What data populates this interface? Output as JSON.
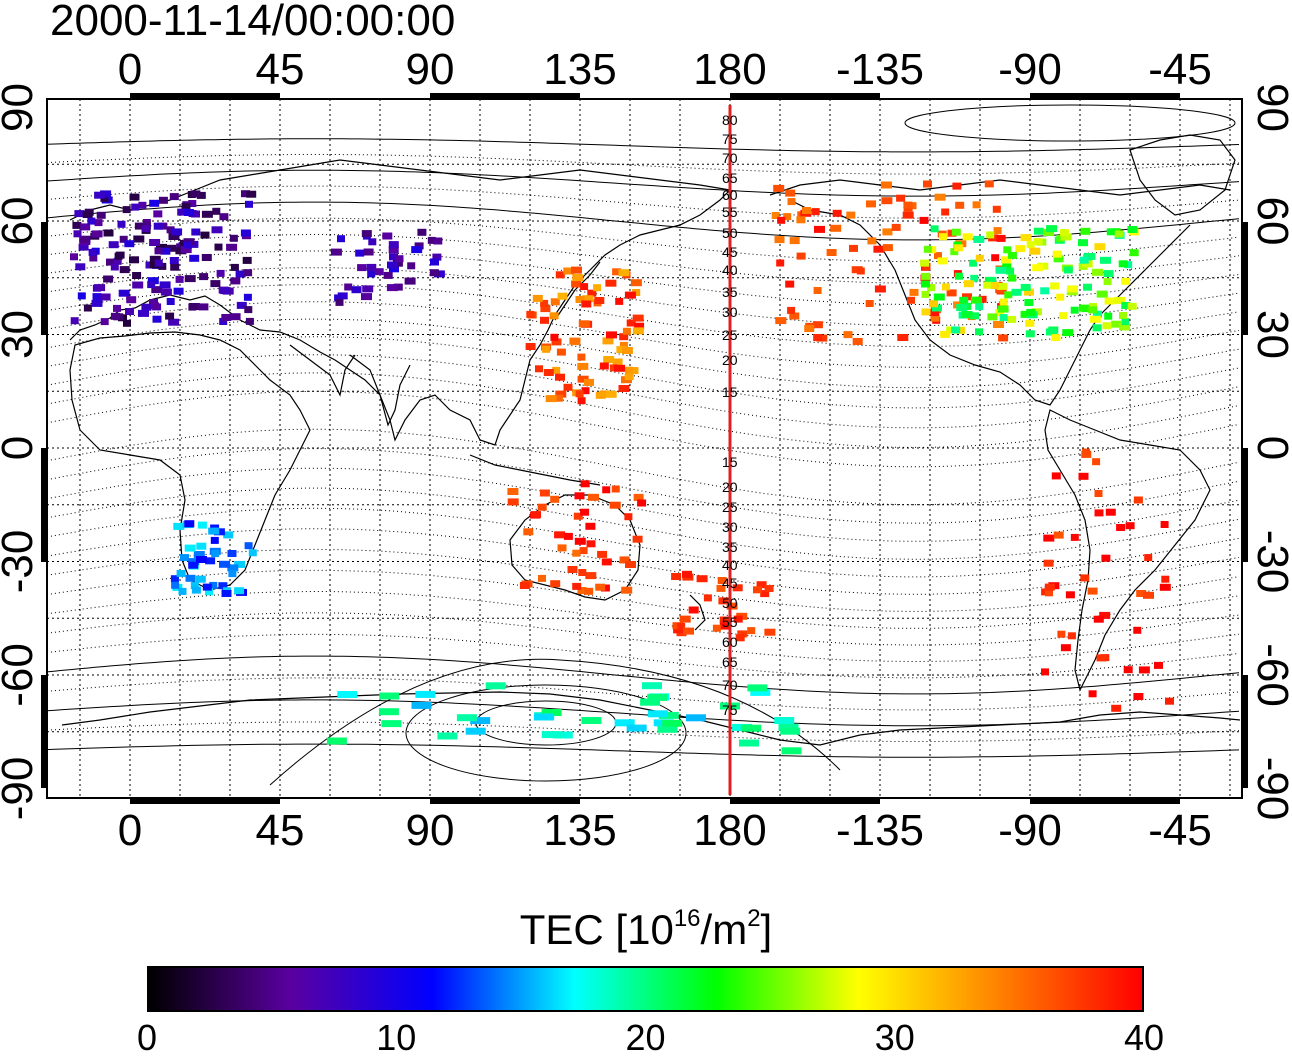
{
  "title": "2000-11-14/00:00:00",
  "map": {
    "top_lon_labels": [
      "0",
      "45",
      "90",
      "135",
      "180",
      "-135",
      "-90",
      "-45"
    ],
    "bottom_lon_labels": [
      "0",
      "45",
      "90",
      "135",
      "180",
      "-135",
      "-90",
      "-45"
    ],
    "left_lat_labels": [
      "90",
      "60",
      "30",
      "0",
      "-30",
      "-60",
      "-90"
    ],
    "right_lat_labels": [
      "90",
      "60",
      "30",
      "0",
      "-30",
      "-60",
      "-90"
    ],
    "magnetic_lat_labels_north": [
      "80",
      "75",
      "70",
      "65",
      "60",
      "55",
      "50",
      "45",
      "40",
      "35",
      "30",
      "25",
      "20",
      "15"
    ],
    "magnetic_lat_labels_south": [
      "15",
      "20",
      "25",
      "30",
      "35",
      "40",
      "45",
      "50",
      "55",
      "60",
      "65",
      "70",
      "75"
    ],
    "meridian_line_color": "#e02020",
    "lon_ticks": [
      0,
      45,
      90,
      135,
      180,
      -135,
      -90,
      -45
    ],
    "lat_ticks": [
      90,
      60,
      30,
      0,
      -30,
      -60,
      -90
    ]
  },
  "colorbar": {
    "title_main": "TEC  [10",
    "title_exp": "16",
    "title_mid": "/m",
    "title_exp2": "2",
    "title_end": "]",
    "min": 0,
    "max": 40,
    "tick_labels": [
      "0",
      "10",
      "20",
      "30",
      "40"
    ],
    "colors": [
      "#000000",
      "#5a00a0",
      "#0000ff",
      "#00ffff",
      "#00ff00",
      "#ffff00",
      "#ff8000",
      "#ff0000"
    ]
  },
  "tec_regions": [
    {
      "region": "europe",
      "tec": 6
    },
    {
      "region": "japan",
      "tec": 36
    },
    {
      "region": "north_america_west",
      "tec": 37
    },
    {
      "region": "north_america_central",
      "tec": 25
    },
    {
      "region": "south_africa",
      "tec": 14
    },
    {
      "region": "australia",
      "tec": 38
    },
    {
      "region": "new_zealand",
      "tec": 38
    },
    {
      "region": "south_america",
      "tec": 39
    },
    {
      "region": "antarctica",
      "tec": 18
    },
    {
      "region": "central_asia",
      "tec": 7
    }
  ]
}
